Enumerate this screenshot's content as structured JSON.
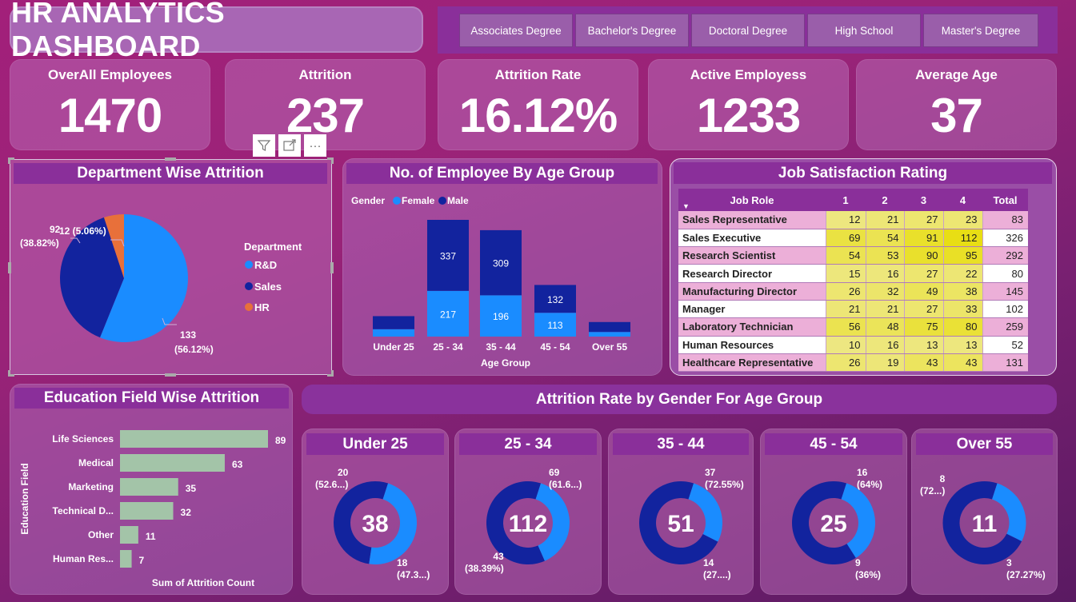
{
  "header": {
    "title": "HR ANALYTICS DASHBOARD"
  },
  "slicer": {
    "options": [
      "Associates Degree",
      "Bachelor's Degree",
      "Doctoral Degree",
      "High School",
      "Master's Degree"
    ]
  },
  "kpis": [
    {
      "label": "OverAll Employees",
      "value": "1470"
    },
    {
      "label": "Attrition",
      "value": "237"
    },
    {
      "label": "Attrition Rate",
      "value": "16.12%"
    },
    {
      "label": "Active Employess",
      "value": "1233"
    },
    {
      "label": "Average Age",
      "value": "37"
    }
  ],
  "visual_header": {
    "icons": [
      "filter-icon",
      "focus-mode-icon",
      "more-options-icon"
    ],
    "more_label": "···"
  },
  "colors": {
    "female": "#1a8cff",
    "male": "#12239e",
    "hr": "#e8703a",
    "bar": "#a3c4a8"
  },
  "chart_data": [
    {
      "type": "pie",
      "title": "Department Wise Attrition",
      "legend_title": "Department",
      "legend_position": "right",
      "slices": [
        {
          "label": "R&D",
          "value": 133,
          "pct": "56.12%",
          "text1": "133",
          "text2": "(56.12%)"
        },
        {
          "label": "Sales",
          "value": 92,
          "pct": "38.82%",
          "text1": "92",
          "text2": "(38.82%)"
        },
        {
          "label": "HR",
          "value": 12,
          "pct": "5.06%",
          "text1": "12 (5.06%)",
          "text2": ""
        }
      ]
    },
    {
      "type": "bar",
      "stacked": true,
      "title": "No. of Employee By Age Group",
      "legend_title": "Gender",
      "legend_position": "top-left",
      "xlabel": "Age Group",
      "categories": [
        "Under 25",
        "25 - 34",
        "35 - 44",
        "45 - 54",
        "Over 55"
      ],
      "series": [
        {
          "name": "Female",
          "values": [
            35,
            217,
            196,
            113,
            22
          ],
          "labels": [
            "",
            "217",
            "196",
            "113",
            ""
          ]
        },
        {
          "name": "Male",
          "values": [
            62,
            337,
            309,
            132,
            47
          ],
          "labels": [
            "",
            "337",
            "309",
            "132",
            ""
          ]
        }
      ],
      "ylim": [
        0,
        600
      ]
    },
    {
      "type": "table",
      "title": "Job Satisfaction Rating",
      "columns": [
        "Job Role",
        "1",
        "2",
        "3",
        "4",
        "Total"
      ],
      "rows": [
        [
          "Sales Representative",
          "12",
          "21",
          "27",
          "23",
          "83"
        ],
        [
          "Sales Executive",
          "69",
          "54",
          "91",
          "112",
          "326"
        ],
        [
          "Research Scientist",
          "54",
          "53",
          "90",
          "95",
          "292"
        ],
        [
          "Research Director",
          "15",
          "16",
          "27",
          "22",
          "80"
        ],
        [
          "Manufacturing Director",
          "26",
          "32",
          "49",
          "38",
          "145"
        ],
        [
          "Manager",
          "21",
          "21",
          "27",
          "33",
          "102"
        ],
        [
          "Laboratory Technician",
          "56",
          "48",
          "75",
          "80",
          "259"
        ],
        [
          "Human Resources",
          "10",
          "16",
          "13",
          "13",
          "52"
        ],
        [
          "Healthcare Representative",
          "26",
          "19",
          "43",
          "43",
          "131"
        ]
      ]
    },
    {
      "type": "bar",
      "orientation": "horizontal",
      "title": "Education Field Wise Attrition",
      "ylabel": "Education Field",
      "xlabel": "Sum of Attrition Count",
      "categories": [
        "Life Sciences",
        "Medical",
        "Marketing",
        "Technical D...",
        "Other",
        "Human Res..."
      ],
      "values": [
        89,
        63,
        35,
        32,
        11,
        7
      ],
      "xlim": [
        0,
        89
      ]
    },
    {
      "type": "pie",
      "donut": true,
      "title": "Attrition Rate by Gender For Age Group",
      "groups": [
        {
          "name": "Under 25",
          "total": "38",
          "male": 20,
          "female": 18,
          "male_label": [
            "20",
            "(52.6...)"
          ],
          "female_label": [
            "18",
            "(47.3...)"
          ]
        },
        {
          "name": "25 - 34",
          "total": "112",
          "male": 69,
          "female": 43,
          "male_label": [
            "69",
            "(61.6...)"
          ],
          "female_label": [
            "43",
            "(38.39%)"
          ]
        },
        {
          "name": "35 - 44",
          "total": "51",
          "male": 37,
          "female": 14,
          "male_label": [
            "37",
            "(72.55%)"
          ],
          "female_label": [
            "14",
            "(27....)"
          ]
        },
        {
          "name": "45 - 54",
          "total": "25",
          "male": 16,
          "female": 9,
          "male_label": [
            "16",
            "(64%)"
          ],
          "female_label": [
            "9",
            "(36%)"
          ]
        },
        {
          "name": "Over 55",
          "total": "11",
          "male": 8,
          "female": 3,
          "male_label": [
            "8",
            "(72...)"
          ],
          "female_label": [
            "3",
            "(27.27%)"
          ]
        }
      ]
    }
  ]
}
